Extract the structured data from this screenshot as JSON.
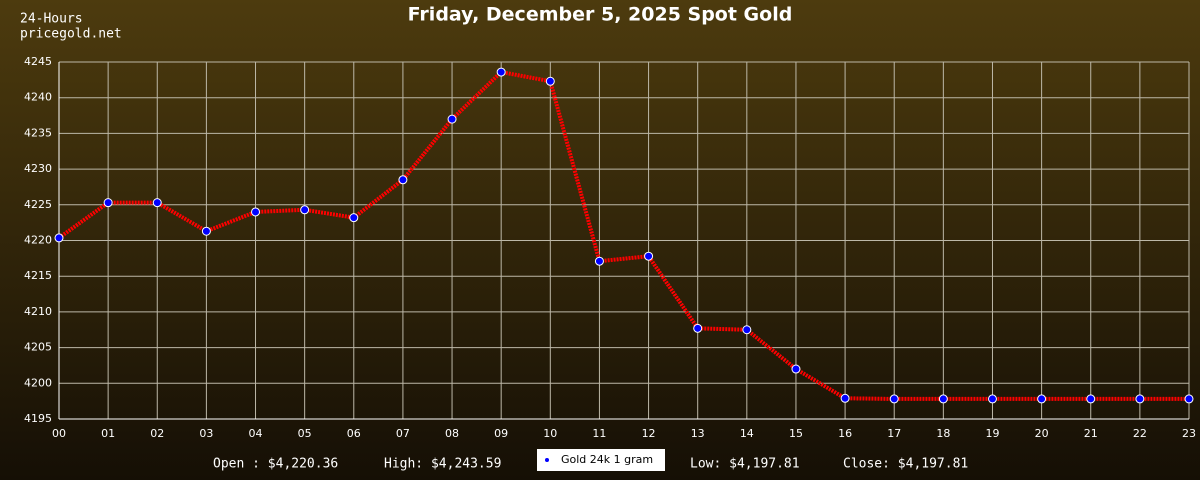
{
  "chart_data": {
    "type": "line",
    "title": "Friday, December 5, 2025 Spot Gold",
    "subtitle": "24-Hours",
    "source": "pricegold.net",
    "categories": [
      "00",
      "01",
      "02",
      "03",
      "04",
      "05",
      "06",
      "07",
      "08",
      "09",
      "10",
      "11",
      "12",
      "13",
      "14",
      "15",
      "16",
      "17",
      "18",
      "19",
      "20",
      "21",
      "22",
      "23"
    ],
    "series": [
      {
        "name": "Gold 24k 1 gram",
        "color": "#ff0000",
        "marker_color": "#0000ff",
        "values": [
          4220.36,
          4225.3,
          4225.3,
          4221.3,
          4224.0,
          4224.3,
          4223.2,
          4228.5,
          4237.0,
          4243.59,
          4242.3,
          4217.1,
          4217.8,
          4207.7,
          4207.5,
          4202.0,
          4197.9,
          4197.81,
          4197.81,
          4197.81,
          4197.81,
          4197.81,
          4197.81,
          4197.81
        ]
      }
    ],
    "ylim": [
      4195,
      4245
    ],
    "yticks": [
      4195,
      4200,
      4205,
      4210,
      4215,
      4220,
      4225,
      4230,
      4235,
      4240,
      4245
    ],
    "grid": true,
    "summary": [
      "Open : $4,220.36",
      "High: $4,243.59",
      "Low: $4,197.81",
      "Close: $4,197.81"
    ]
  }
}
